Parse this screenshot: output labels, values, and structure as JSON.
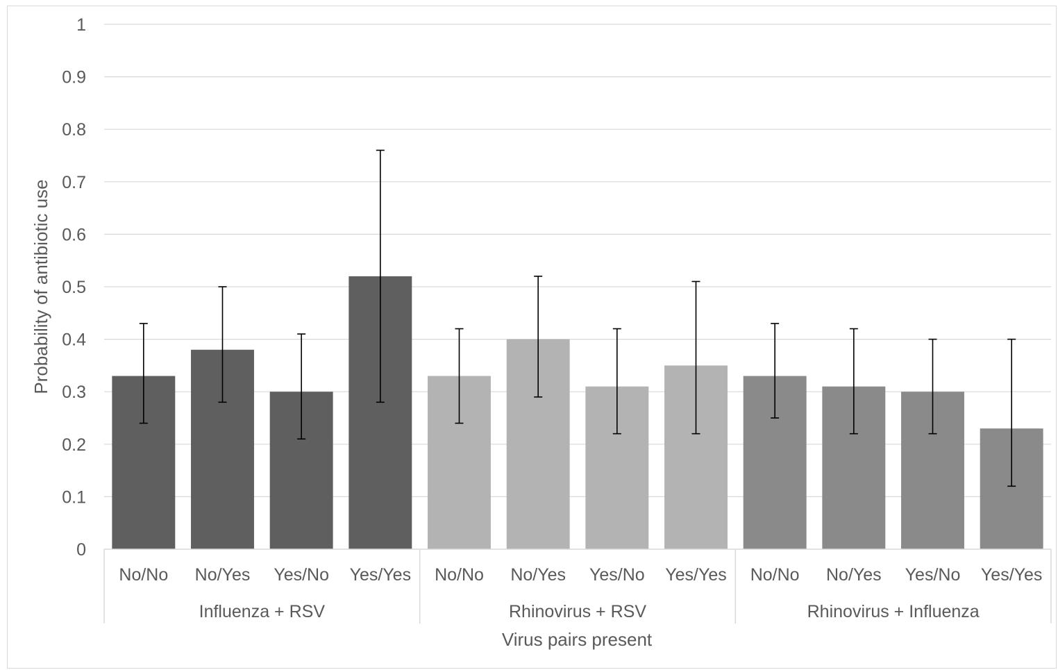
{
  "chart_data": {
    "type": "bar",
    "title": "",
    "xlabel": "Virus pairs present",
    "ylabel": "Probability of antibiotic use",
    "ylim": [
      0,
      1
    ],
    "yticks": [
      "0",
      "0.1",
      "0.2",
      "0.3",
      "0.4",
      "0.5",
      "0.6",
      "0.7",
      "0.8",
      "0.9",
      "1"
    ],
    "grid": true,
    "legend": "none",
    "groups": [
      {
        "name": "Influenza + RSV",
        "color": "#5f5f5f",
        "categories": [
          "No/No",
          "No/Yes",
          "Yes/No",
          "Yes/Yes"
        ],
        "values": [
          0.33,
          0.38,
          0.3,
          0.52
        ],
        "ci_low": [
          0.24,
          0.28,
          0.21,
          0.28
        ],
        "ci_high": [
          0.43,
          0.5,
          0.41,
          0.76
        ]
      },
      {
        "name": "Rhinovirus + RSV",
        "color": "#b3b3b3",
        "categories": [
          "No/No",
          "No/Yes",
          "Yes/No",
          "Yes/Yes"
        ],
        "values": [
          0.33,
          0.4,
          0.31,
          0.35
        ],
        "ci_low": [
          0.24,
          0.29,
          0.22,
          0.22
        ],
        "ci_high": [
          0.42,
          0.52,
          0.42,
          0.51
        ]
      },
      {
        "name": "Rhinovirus + Influenza",
        "color": "#8a8a8a",
        "categories": [
          "No/No",
          "No/Yes",
          "Yes/No",
          "Yes/Yes"
        ],
        "values": [
          0.33,
          0.31,
          0.3,
          0.23
        ],
        "ci_low": [
          0.25,
          0.22,
          0.22,
          0.12
        ],
        "ci_high": [
          0.43,
          0.42,
          0.4,
          0.4
        ]
      }
    ]
  }
}
